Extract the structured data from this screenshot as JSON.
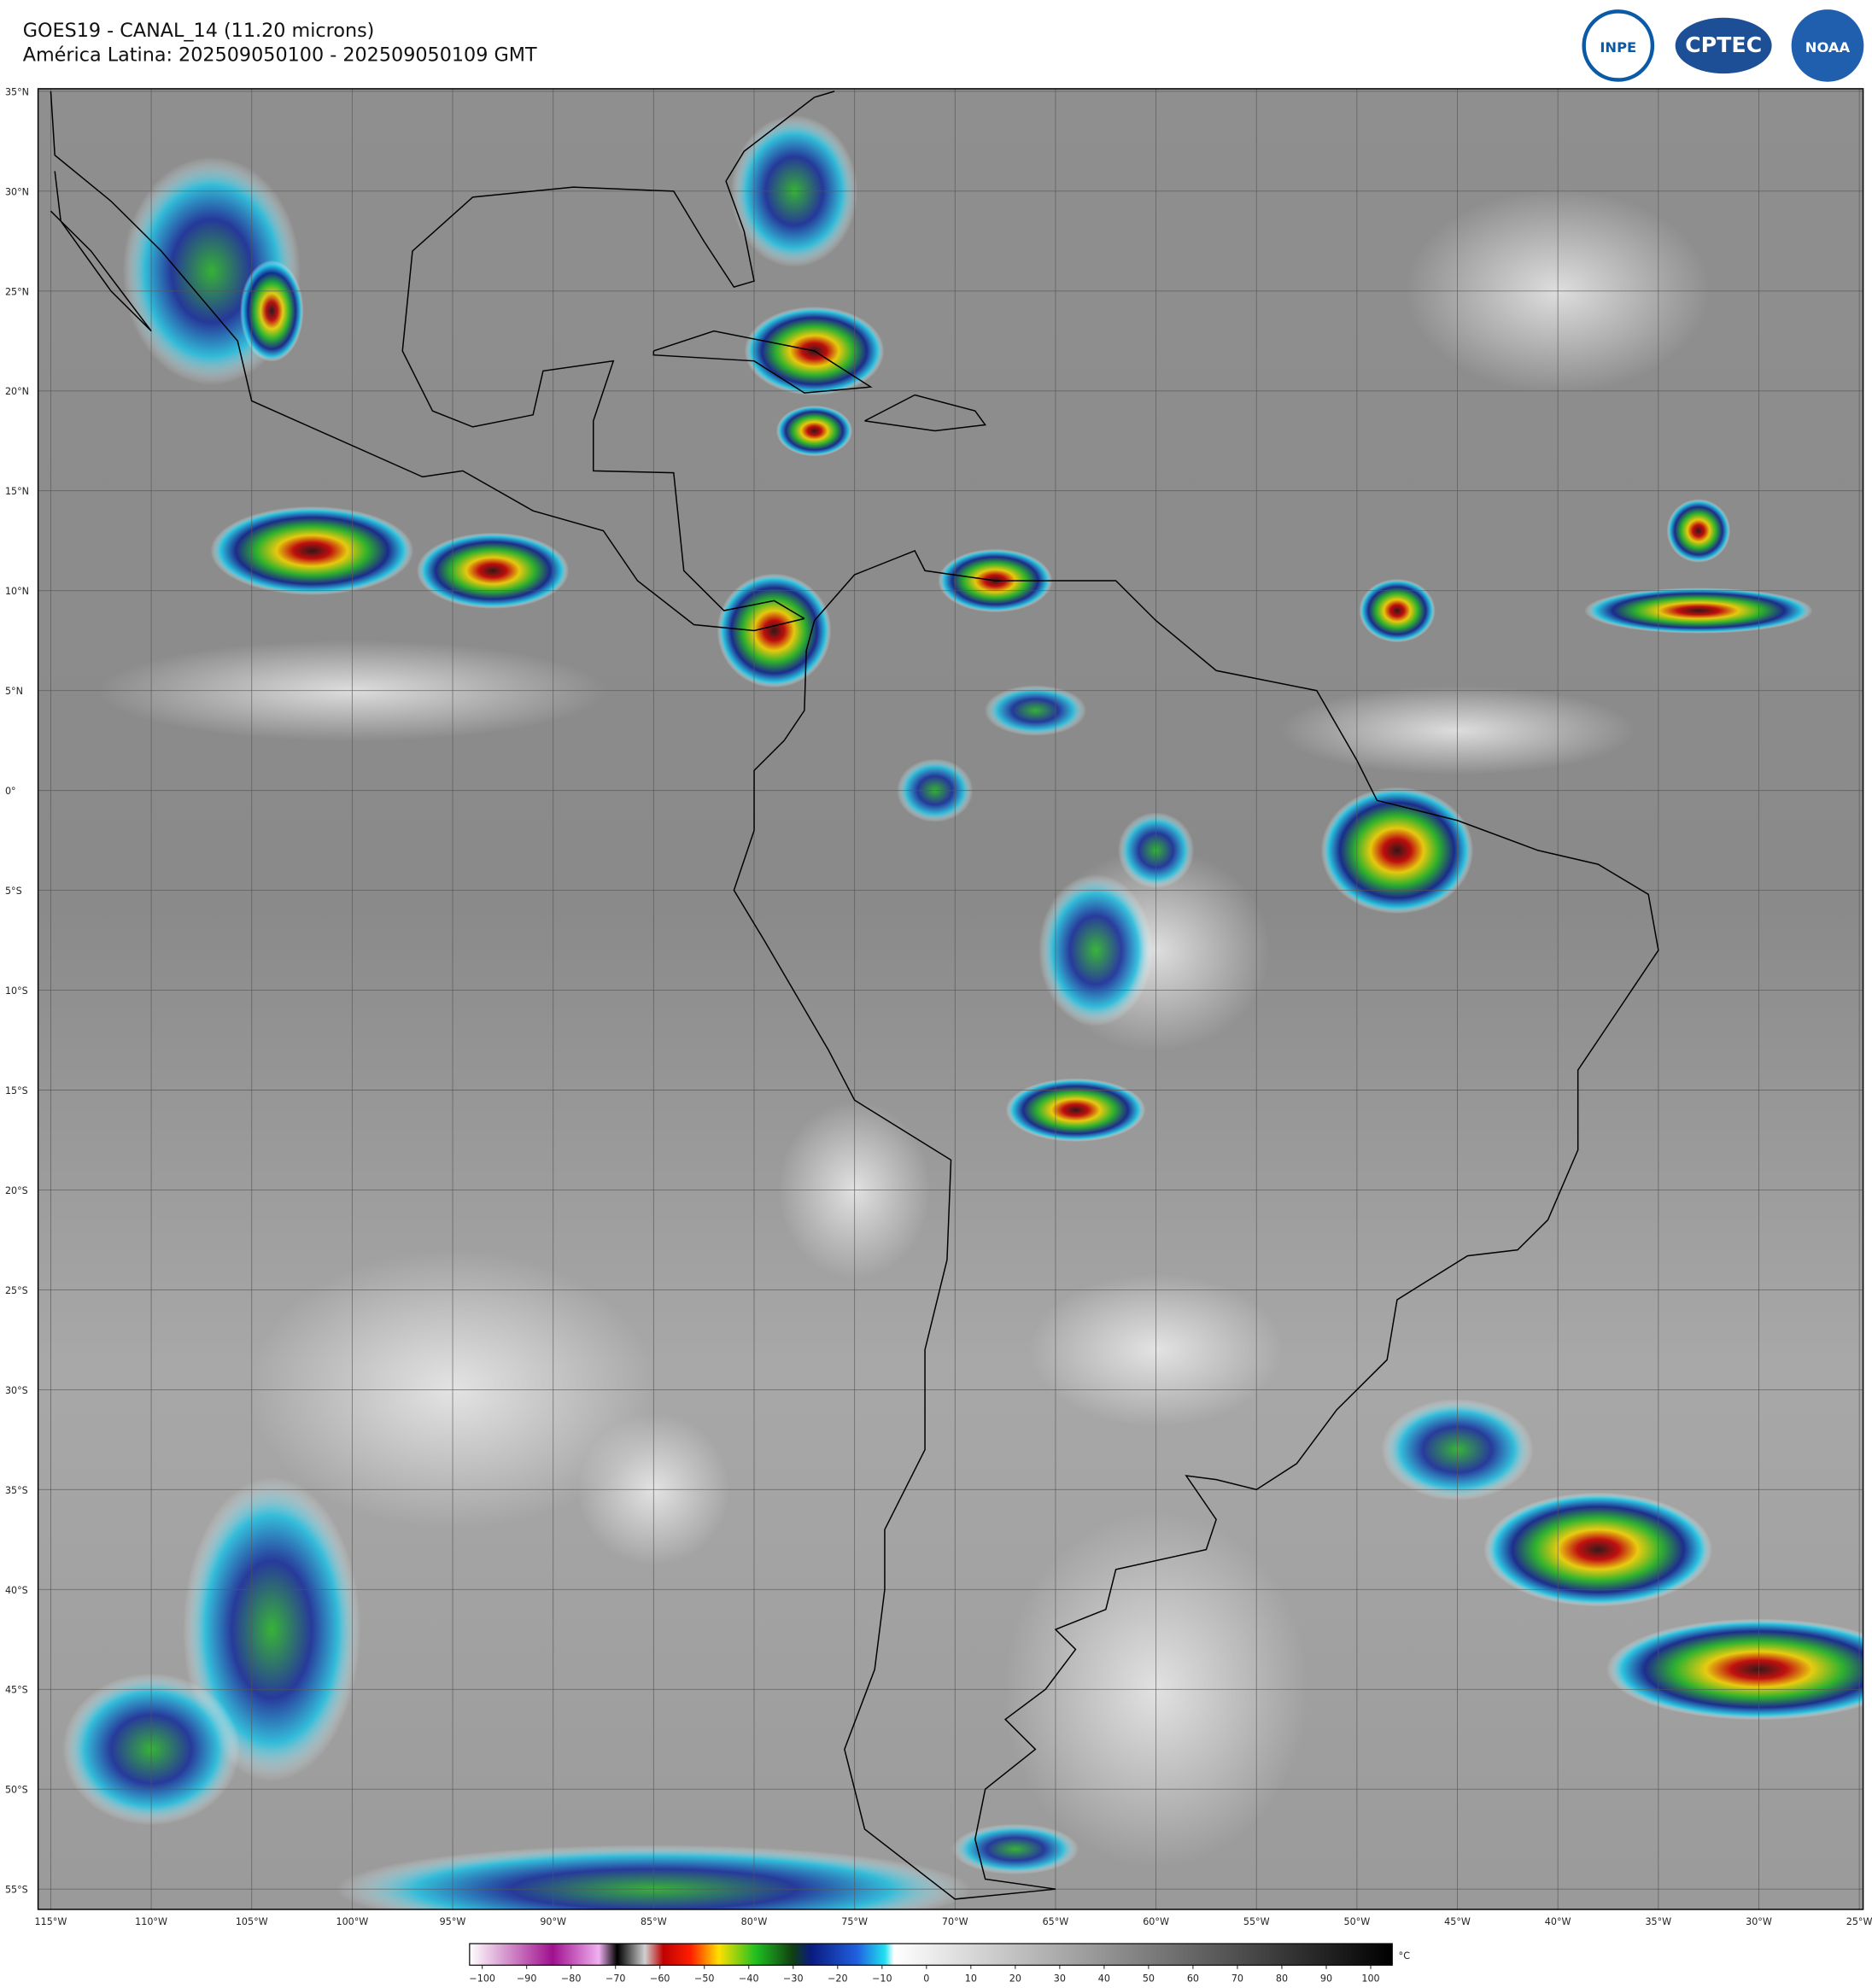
{
  "header": {
    "title": "GOES19 - CANAL_14 (11.20 microns)",
    "subtitle": "América Latina: 202509050100 - 202509050109 GMT"
  },
  "logos": [
    "INPE",
    "CPTEC",
    "NOAA"
  ],
  "map": {
    "lat_labels": [
      "35°N",
      "30°N",
      "25°N",
      "20°N",
      "15°N",
      "10°N",
      "5°N",
      "0°",
      "5°S",
      "10°S",
      "15°S",
      "20°S",
      "25°S",
      "30°S",
      "35°S",
      "40°S",
      "45°S",
      "50°S",
      "55°S"
    ],
    "lon_labels": [
      "115°W",
      "110°W",
      "105°W",
      "100°W",
      "95°W",
      "90°W",
      "85°W",
      "80°W",
      "75°W",
      "70°W",
      "65°W",
      "60°W",
      "55°W",
      "50°W",
      "45°W",
      "40°W",
      "35°W",
      "30°W",
      "25°W"
    ]
  },
  "colorbar": {
    "tick_labels": [
      "−100",
      "−90",
      "−80",
      "−70",
      "−60",
      "−50",
      "−40",
      "−30",
      "−20",
      "−10",
      "0",
      "10",
      "20",
      "30",
      "40",
      "50",
      "60",
      "70",
      "80",
      "90",
      "100"
    ],
    "unit": "°C"
  }
}
